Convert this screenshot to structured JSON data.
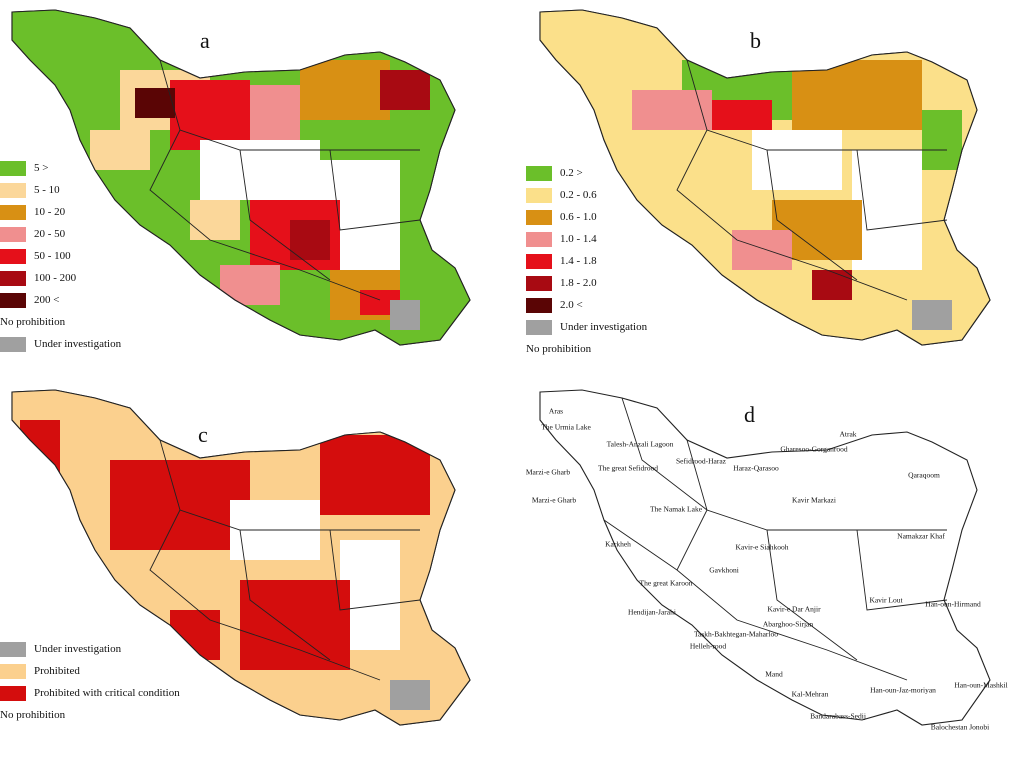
{
  "panels": {
    "a": {
      "label": "a",
      "legend": [
        {
          "text": "5 >",
          "color": "#6bbf2a"
        },
        {
          "text": "5 - 10",
          "color": "#fbd79a"
        },
        {
          "text": "10 - 20",
          "color": "#d89014"
        },
        {
          "text": "20 - 50",
          "color": "#f08f8f"
        },
        {
          "text": "50 - 100",
          "color": "#e5101a"
        },
        {
          "text": "100 - 200",
          "color": "#a80a12"
        },
        {
          "text": "200 <",
          "color": "#5a0505"
        },
        {
          "text": "No prohibition",
          "color": ""
        },
        {
          "text": "Under investigation",
          "color": "#a0a0a0"
        }
      ]
    },
    "b": {
      "label": "b",
      "legend": [
        {
          "text": "0.2 >",
          "color": "#6bbf2a"
        },
        {
          "text": "0.2 - 0.6",
          "color": "#fbe08a"
        },
        {
          "text": "0.6 - 1.0",
          "color": "#d89014"
        },
        {
          "text": "1.0 - 1.4",
          "color": "#f08f8f"
        },
        {
          "text": "1.4 - 1.8",
          "color": "#e5101a"
        },
        {
          "text": "1.8 - 2.0",
          "color": "#a80a12"
        },
        {
          "text": "2.0 <",
          "color": "#5a0505"
        },
        {
          "text": "Under investigation",
          "color": "#a0a0a0"
        },
        {
          "text": "No prohibition",
          "color": ""
        }
      ]
    },
    "c": {
      "label": "c",
      "legend": [
        {
          "text": "Under investigation",
          "color": "#a0a0a0"
        },
        {
          "text": "Prohibited",
          "color": "#fbd08e"
        },
        {
          "text": "Prohibited with critical condition",
          "color": "#d40d0d"
        },
        {
          "text": "No prohibition",
          "color": ""
        }
      ]
    },
    "d": {
      "label": "d",
      "basins": [
        "Aras",
        "The Urmia Lake",
        "Talesh-Anzali Lagoon",
        "Sefidrood-Haraz",
        "Atrak",
        "Gharesoo-Gorganrood",
        "Haraz-Qarasoo",
        "Marzi-e Gharb",
        "The great Sefidrood",
        "Qaraqoom",
        "Marzi-e Gharb",
        "The Namak Lake",
        "Kavir Markazi",
        "Namakzar Khaf",
        "Karkheh",
        "Kavir-e Siahkooh",
        "Gavkhoni",
        "The great Karoon",
        "Kavir Lout",
        "Han-oun-Hirmand",
        "Hendijan-Jarahi",
        "Kavir-e Dar Anjir",
        "Abarghoo-Sirjan",
        "Taskh-Bakhtegan-Maharloo",
        "Helleh-rood",
        "Mand",
        "Kal-Mehran",
        "Han-oun-Jaz-moriyan",
        "Han-oun-Mashkil",
        "Bandarabass-Sedij",
        "Balochestan Jonobi"
      ]
    }
  }
}
